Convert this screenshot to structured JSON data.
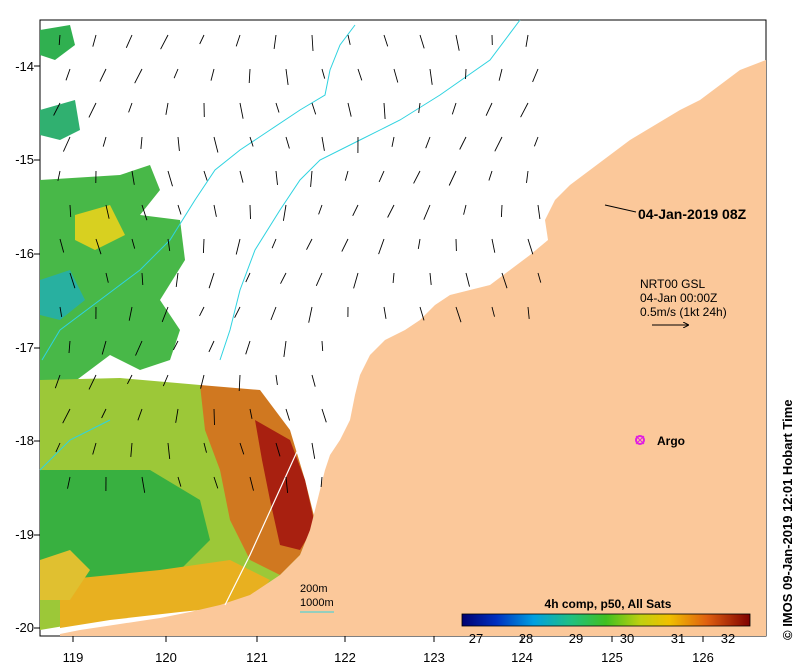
{
  "map": {
    "x_ticks": [
      "119",
      "120",
      "121",
      "122",
      "123",
      "124",
      "125",
      "126"
    ],
    "y_ticks": [
      "-14",
      "-15",
      "-16",
      "-17",
      "-18",
      "-19",
      "-20"
    ],
    "timestamp_label": "04-Jan-2019 08Z",
    "current_legend": {
      "line1": "NRT00 GSL",
      "line2": "04-Jan 00:00Z",
      "line3": "0.5m/s (1kt 24h)"
    },
    "argo_label": "Argo",
    "isobaths": {
      "depth1": "200m",
      "depth2": "1000m"
    },
    "colorbar": {
      "title": "4h comp, p50, All Sats",
      "ticks": [
        "27",
        "28",
        "29",
        "30",
        "31",
        "32"
      ]
    },
    "side_caption": "© IMOS 09-Jan-2019 12:01 Hobart Time",
    "colors": {
      "land": "#fbc89a",
      "isobath": "#2fd3e0",
      "argo": "#e020e0",
      "sst_warm": "#a0200a",
      "sst_cool": "#1ca050"
    }
  }
}
